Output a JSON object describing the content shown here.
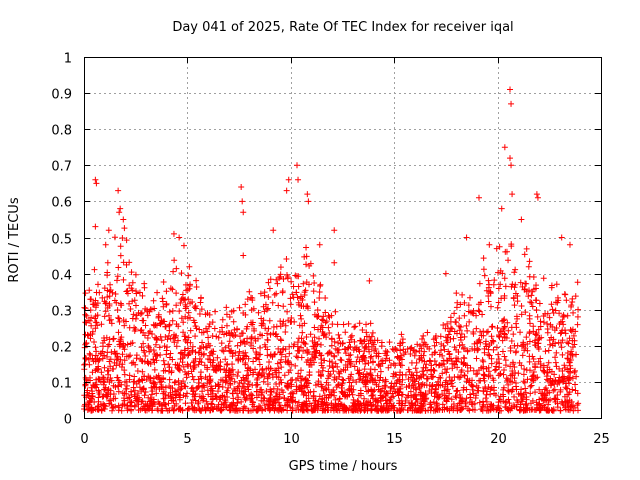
{
  "chart_data": {
    "type": "scatter",
    "title": "Day 041 of 2025, Rate Of TEC Index for receiver iqal",
    "xlabel": "GPS time / hours",
    "ylabel": "ROTI / TECUs",
    "xlim": [
      0,
      25
    ],
    "ylim": [
      0,
      1
    ],
    "xticks": [
      "0",
      "5",
      "10",
      "15",
      "20",
      "25"
    ],
    "yticks": [
      "0",
      "0.1",
      "0.2",
      "0.3",
      "0.4",
      "0.5",
      "0.6",
      "0.7",
      "0.8",
      "0.9",
      "1"
    ],
    "grid": true,
    "marker": "plus",
    "color": "#ff0000",
    "envelope": {
      "x": [
        0,
        1,
        2,
        3,
        4,
        5,
        6,
        7,
        8,
        9,
        10,
        11,
        12,
        13,
        14,
        15,
        16,
        17,
        18,
        19,
        20,
        21,
        22,
        23,
        24
      ],
      "y": [
        0.3,
        0.38,
        0.45,
        0.3,
        0.32,
        0.42,
        0.25,
        0.25,
        0.3,
        0.33,
        0.42,
        0.4,
        0.28,
        0.22,
        0.22,
        0.18,
        0.18,
        0.22,
        0.3,
        0.35,
        0.42,
        0.45,
        0.35,
        0.32,
        0.32
      ]
    },
    "outliers": [
      {
        "x": 0.55,
        "y": 0.66
      },
      {
        "x": 0.6,
        "y": 0.65
      },
      {
        "x": 0.55,
        "y": 0.53
      },
      {
        "x": 1.05,
        "y": 0.48
      },
      {
        "x": 1.2,
        "y": 0.52
      },
      {
        "x": 1.65,
        "y": 0.63
      },
      {
        "x": 1.7,
        "y": 0.57
      },
      {
        "x": 1.75,
        "y": 0.58
      },
      {
        "x": 1.9,
        "y": 0.55
      },
      {
        "x": 4.35,
        "y": 0.51
      },
      {
        "x": 4.6,
        "y": 0.5
      },
      {
        "x": 7.6,
        "y": 0.64
      },
      {
        "x": 7.65,
        "y": 0.6
      },
      {
        "x": 7.7,
        "y": 0.57
      },
      {
        "x": 7.7,
        "y": 0.45
      },
      {
        "x": 9.9,
        "y": 0.66
      },
      {
        "x": 10.3,
        "y": 0.7
      },
      {
        "x": 10.35,
        "y": 0.66
      },
      {
        "x": 9.8,
        "y": 0.63
      },
      {
        "x": 10.8,
        "y": 0.62
      },
      {
        "x": 10.85,
        "y": 0.6
      },
      {
        "x": 9.15,
        "y": 0.52
      },
      {
        "x": 11.4,
        "y": 0.48
      },
      {
        "x": 12.1,
        "y": 0.52
      },
      {
        "x": 12.1,
        "y": 0.43
      },
      {
        "x": 13.8,
        "y": 0.38
      },
      {
        "x": 17.5,
        "y": 0.4
      },
      {
        "x": 18.5,
        "y": 0.5
      },
      {
        "x": 19.1,
        "y": 0.61
      },
      {
        "x": 19.6,
        "y": 0.48
      },
      {
        "x": 20.2,
        "y": 0.58
      },
      {
        "x": 20.35,
        "y": 0.75
      },
      {
        "x": 20.6,
        "y": 0.91
      },
      {
        "x": 20.65,
        "y": 0.87
      },
      {
        "x": 20.6,
        "y": 0.72
      },
      {
        "x": 20.65,
        "y": 0.7
      },
      {
        "x": 20.7,
        "y": 0.62
      },
      {
        "x": 21.15,
        "y": 0.55
      },
      {
        "x": 21.9,
        "y": 0.62
      },
      {
        "x": 21.95,
        "y": 0.61
      },
      {
        "x": 23.5,
        "y": 0.48
      },
      {
        "x": 23.1,
        "y": 0.5
      }
    ]
  }
}
